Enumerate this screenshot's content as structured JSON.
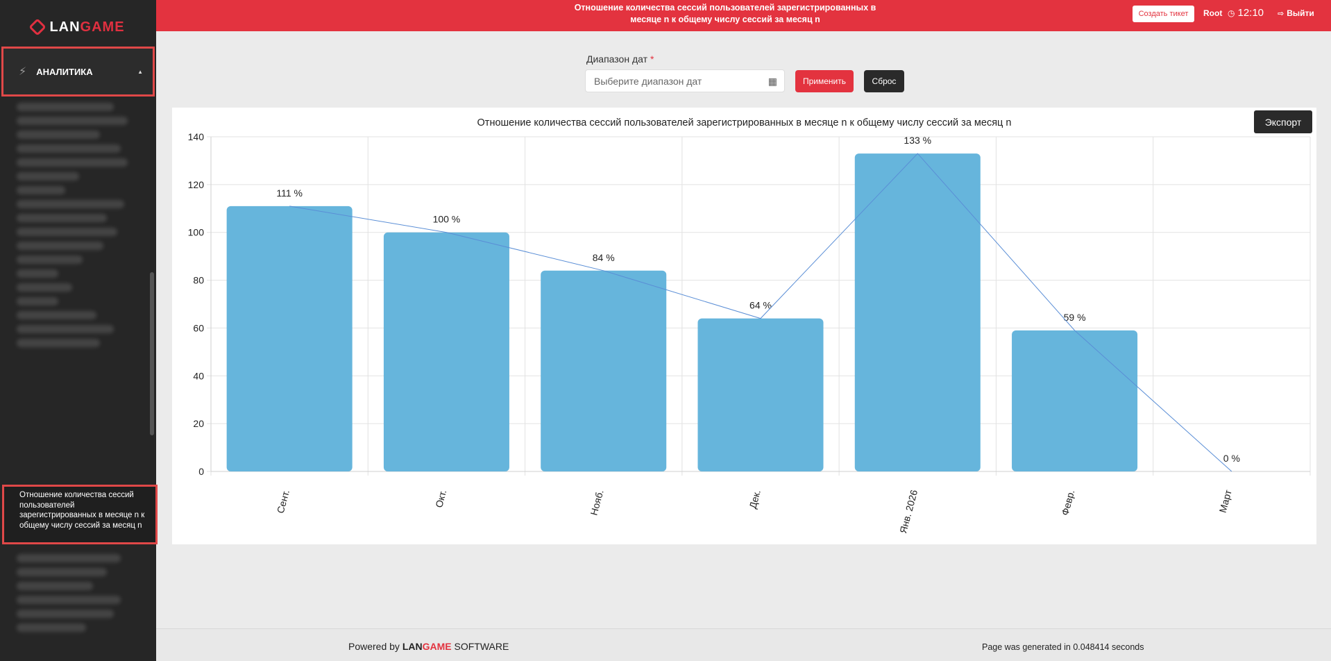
{
  "brand": {
    "lan": "LAN",
    "game": "GAME"
  },
  "sidebar": {
    "section_label": "АНАЛИТИКА",
    "active_item": "Отношение количества сессий пользователей зарегистрированных в месяце n к общему числу сессий за месяц n"
  },
  "topbar": {
    "title": "Отношение количества сессий пользователей зарегистрированных в месяце n к общему числу сессий за месяц n",
    "ticket_label": "Создать тикет",
    "user": "Root",
    "time": "12:10",
    "logout_label": "Выйти"
  },
  "filter": {
    "label": "Диапазон дат",
    "required_mark": "*",
    "placeholder": "Выберите диапазон дат",
    "apply_label": "Применить",
    "reset_label": "Сброс"
  },
  "export_label": "Экспорт",
  "chart_data": {
    "type": "bar",
    "title": "Отношение количества сессий пользователей зарегистрированных в месяце n к общему числу сессий за месяц n",
    "categories": [
      "Сент.",
      "Окт.",
      "Нояб.",
      "Дек.",
      "Янв. 2026",
      "Февр.",
      "Март"
    ],
    "values": [
      111,
      100,
      84,
      64,
      133,
      59,
      0
    ],
    "data_labels": [
      "111 %",
      "100 %",
      "84 %",
      "64 %",
      "133 %",
      "59 %",
      "0 %"
    ],
    "overlay_line": true,
    "ylim": [
      0,
      140
    ],
    "yticks": [
      0,
      20,
      40,
      60,
      80,
      100,
      120,
      140
    ],
    "grid": true,
    "bar_color": "#66b5dc",
    "line_color": "#5a8ed6"
  },
  "footer": {
    "powered_prefix": "Powered by",
    "powered_suffix": "SOFTWARE",
    "generated": "Page was generated in 0.048414 seconds"
  }
}
